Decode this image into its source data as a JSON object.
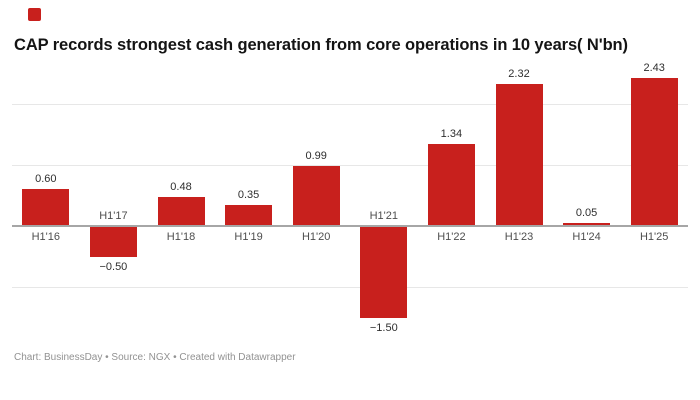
{
  "header": {
    "logo_icon": "businessday-red-square-logo"
  },
  "footer": {
    "text": "Chart: BusinessDay • Source: NGX • Created with Datawrapper"
  },
  "colors": {
    "bar": "#c8201d",
    "logo": "#c8201d",
    "grid": "#e7e7e7",
    "axis": "#a6a6a6",
    "title": "#141414",
    "value_label": "#2e2e2e",
    "category_label": "#4e4e4e",
    "footer_text": "#929292"
  },
  "chart_data": {
    "type": "bar",
    "title": "CAP records strongest cash generation from core operations in 10 years( N'bn)",
    "categories": [
      "H1'16",
      "H1'17",
      "H1'18",
      "H1'19",
      "H1'20",
      "H1'21",
      "H1'22",
      "H1'23",
      "H1'24",
      "H1'25"
    ],
    "values": [
      0.6,
      -0.5,
      0.48,
      0.35,
      0.99,
      -1.5,
      1.34,
      2.32,
      0.05,
      2.43
    ],
    "value_labels": [
      "0.60",
      "−0.50",
      "0.48",
      "0.35",
      "0.99",
      "−1.50",
      "1.34",
      "2.32",
      "0.05",
      "2.43"
    ],
    "xlabel": "",
    "ylabel": "",
    "ylim": [
      -1.8,
      2.7
    ],
    "baseline": 0,
    "gridline_values": [
      2,
      1,
      -1
    ],
    "grid": true,
    "legend_position": "none",
    "bar_color": "#c8201d",
    "value_label_position": "outside-end",
    "negative_category_label_position": "above-baseline"
  }
}
